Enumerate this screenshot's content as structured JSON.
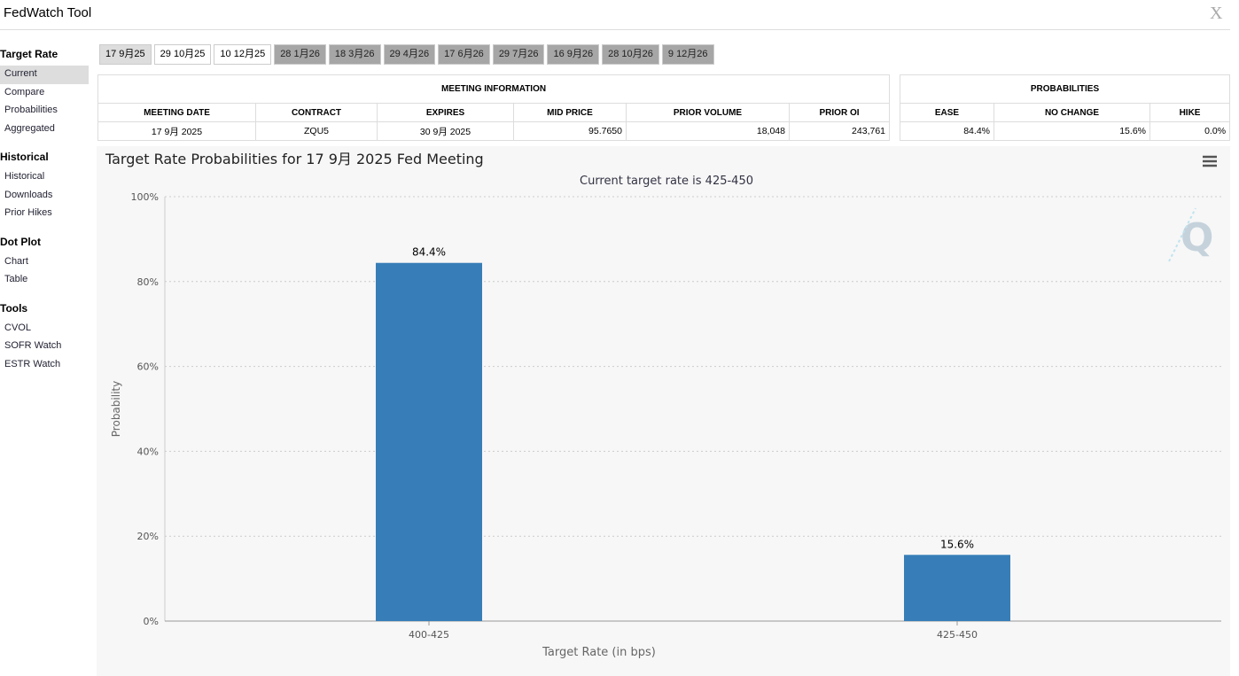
{
  "header": {
    "title": "FedWatch Tool",
    "close": "X"
  },
  "sidebar": [
    {
      "heading": "Target Rate",
      "items": [
        "Current",
        "Compare",
        "Probabilities",
        "Aggregated"
      ]
    },
    {
      "heading": "Historical",
      "items": [
        "Historical",
        "Downloads",
        "Prior Hikes"
      ]
    },
    {
      "heading": "Dot Plot",
      "items": [
        "Chart",
        "Table"
      ]
    },
    {
      "heading": "Tools",
      "items": [
        "CVOL",
        "SOFR Watch",
        "ESTR Watch"
      ]
    }
  ],
  "tabs": [
    "17 9月25",
    "29 10月25",
    "10 12月25",
    "28 1月26",
    "18 3月26",
    "29 4月26",
    "17 6月26",
    "29 7月26",
    "16 9月26",
    "28 10月26",
    "9 12月26"
  ],
  "meeting_table": {
    "title": "MEETING INFORMATION",
    "columns": [
      "MEETING DATE",
      "CONTRACT",
      "EXPIRES",
      "MID PRICE",
      "PRIOR VOLUME",
      "PRIOR OI"
    ],
    "rows": [
      [
        "17 9月 2025",
        "ZQU5",
        "30 9月 2025",
        "95.7650",
        "18,048",
        "243,761"
      ]
    ]
  },
  "probabilities_table": {
    "title": "PROBABILITIES",
    "columns": [
      "EASE",
      "NO CHANGE",
      "HIKE"
    ],
    "rows": [
      [
        "84.4%",
        "15.6%",
        "0.0%"
      ]
    ]
  },
  "chart_data": {
    "type": "bar",
    "title": "Target Rate Probabilities for 17 9月 2025 Fed Meeting",
    "subtitle": "Current target rate is 425-450",
    "x_label": "Target Rate (in bps)",
    "y_label": "Probability",
    "categories": [
      "400-425",
      "425-450"
    ],
    "values": [
      84.4,
      15.6
    ],
    "value_labels": [
      "84.4%",
      "15.6%"
    ],
    "color": "#377eb8",
    "ylim": [
      0,
      100
    ],
    "yticks": [
      {
        "value": 0,
        "label": "0%"
      },
      {
        "value": 20,
        "label": "20%"
      },
      {
        "value": 40,
        "label": "40%"
      },
      {
        "value": 60,
        "label": "60%"
      },
      {
        "value": 80,
        "label": "80%"
      },
      {
        "value": 100,
        "label": "100%"
      }
    ],
    "grid": true
  }
}
